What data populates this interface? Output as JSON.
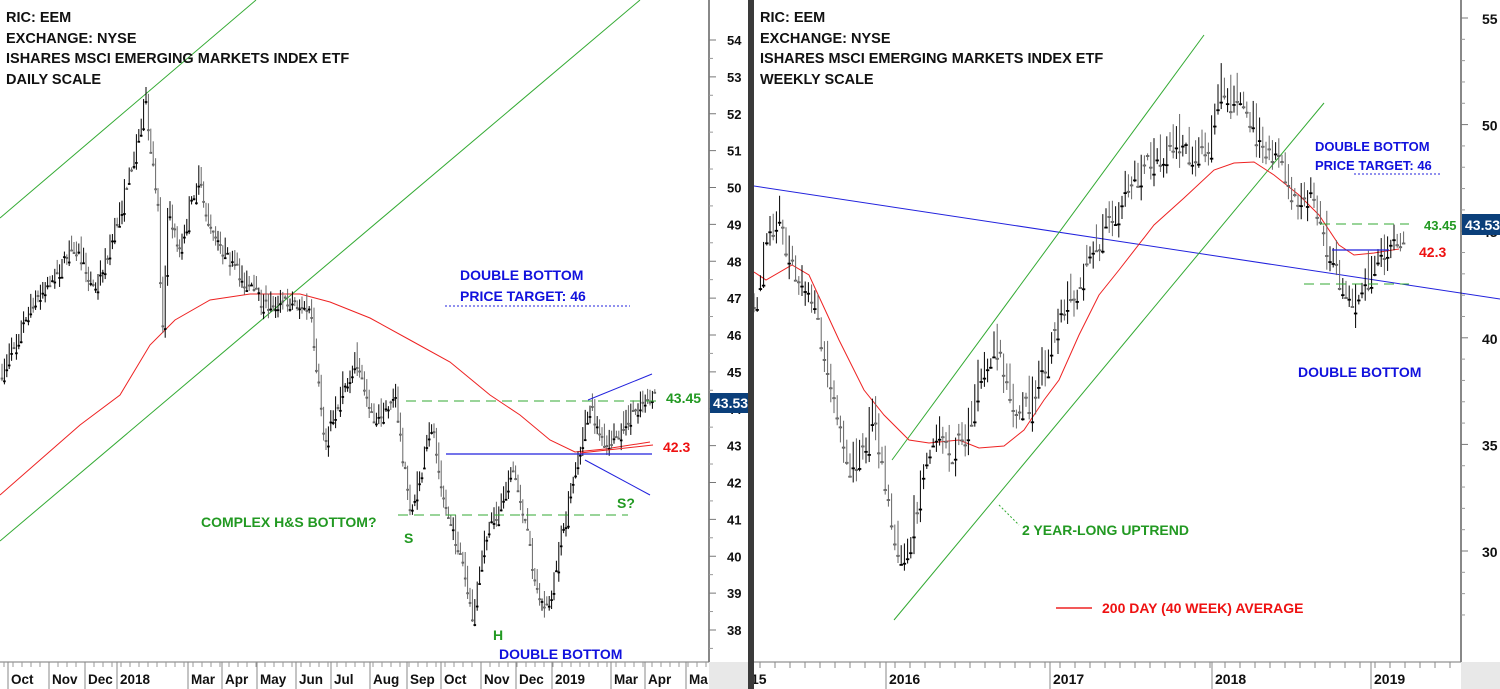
{
  "colors": {
    "price": "#000000",
    "hollow_body": "#ffffff",
    "ma": "#ee2222",
    "trendline_green": "#33aa33",
    "trendline_blue": "#2222dd",
    "label_green": "#229922",
    "label_blue": "#1111dd",
    "label_red": "#ee1111",
    "last_price_bg": "#0b3f7a",
    "last_price_fg": "#ffffff",
    "axis_corner": "#e8e8e8",
    "divider": "#3a3a3a"
  },
  "daily": {
    "header": [
      "RIC: EEM",
      "EXCHANGE: NYSE",
      "ISHARES MSCI EMERGING MARKETS INDEX ETF",
      "DAILY SCALE"
    ],
    "last_price": "43.53",
    "annotations": {
      "target_title": "DOUBLE BOTTOM",
      "target_value": "PRICE TARGET: 46",
      "level_upper": "43.45",
      "level_ma": "42.3",
      "pattern": "COMPLEX H&S BOTTOM?",
      "left_shoulder": "S",
      "head": "H",
      "right_shoulder": "S?",
      "double_bottom": "DOUBLE BOTTOM"
    }
  },
  "weekly": {
    "header": [
      "RIC: EEM",
      "EXCHANGE: NYSE",
      "ISHARES MSCI EMERGING MARKETS INDEX ETF",
      "WEEKLY SCALE"
    ],
    "last_price": "43.53",
    "annotations": {
      "target_title": "DOUBLE BOTTOM",
      "target_value": "PRICE TARGET: 46",
      "level_upper": "43.45",
      "level_ma": "42.3",
      "uptrend": "2 YEAR-LONG UPTREND",
      "double_bottom": "DOUBLE BOTTOM",
      "legend": "200 DAY (40 WEEK) AVERAGE"
    }
  },
  "chart_data": [
    {
      "type": "candlestick",
      "title": "RIC: EEM | EXCHANGE: NYSE | ISHARES MSCI EMERGING MARKETS INDEX ETF | DAILY SCALE",
      "xlabel": "",
      "ylabel": "",
      "x_ticks": [
        "Oct",
        "Nov",
        "Dec",
        "2018",
        "Mar",
        "Apr",
        "May",
        "Jun",
        "Jul",
        "Aug",
        "Sep",
        "Oct",
        "Nov",
        "Dec",
        "2019",
        "Mar",
        "Apr",
        "Ma"
      ],
      "y_ticks": [
        38,
        39,
        40,
        41,
        42,
        43,
        44,
        45,
        46,
        47,
        48,
        49,
        50,
        51,
        52,
        53,
        54
      ],
      "ylim": [
        37.5,
        55.2
      ],
      "last_price": 43.53,
      "series": [
        {
          "name": "EEM close (approx.)",
          "x": [
            "2017-10",
            "2017-11",
            "2017-12",
            "2018-01",
            "2018-01-26",
            "2018-02",
            "2018-03",
            "2018-04",
            "2018-05",
            "2018-06",
            "2018-07",
            "2018-08",
            "2018-09",
            "2018-10",
            "2018-10-29",
            "2018-11",
            "2018-12",
            "2018-12-24",
            "2019-01",
            "2019-02",
            "2019-03",
            "2019-03-29"
          ],
          "values": [
            44.8,
            46.8,
            47.5,
            49.5,
            52.0,
            47.0,
            49.8,
            48.3,
            46.5,
            44.5,
            43.0,
            42.2,
            42.5,
            40.0,
            37.8,
            41.5,
            39.5,
            38.3,
            41.5,
            43.0,
            42.5,
            43.53
          ]
        },
        {
          "name": "200 day average",
          "x": [
            "2017-10",
            "2018-01",
            "2018-02",
            "2018-05",
            "2018-07",
            "2018-09",
            "2018-12",
            "2019-01",
            "2019-03"
          ],
          "values": [
            41.2,
            44.3,
            45.0,
            46.4,
            45.8,
            44.8,
            42.4,
            42.2,
            42.3
          ]
        }
      ],
      "levels": [
        {
          "label": "43.45",
          "value": 43.45,
          "style": "dashed",
          "color": "green"
        },
        {
          "label": "42.3",
          "value": 42.3,
          "style": "ma",
          "color": "red"
        },
        {
          "label": "neckline",
          "value": 42.1,
          "style": "solid",
          "color": "blue"
        },
        {
          "label": "shoulder base",
          "value": 40.65,
          "style": "dashed",
          "color": "green"
        },
        {
          "label": "PRICE TARGET: 46",
          "value": 46.0,
          "style": "dotted",
          "color": "blue"
        }
      ],
      "annotations": [
        "DOUBLE BOTTOM PRICE TARGET: 46",
        "COMPLEX H&S BOTTOM?",
        "S",
        "H",
        "S?",
        "DOUBLE BOTTOM",
        "43.45",
        "42.3"
      ]
    },
    {
      "type": "candlestick",
      "title": "RIC: EEM | EXCHANGE: NYSE | ISHARES MSCI EMERGING MARKETS INDEX ETF | WEEKLY SCALE",
      "xlabel": "",
      "ylabel": "",
      "x_ticks": [
        "15",
        "2016",
        "2017",
        "2018",
        "2019"
      ],
      "y_ticks": [
        30,
        35,
        40,
        45,
        50,
        55
      ],
      "ylim": [
        26.5,
        56.0
      ],
      "last_price": 43.53,
      "series": [
        {
          "name": "EEM weekly close (approx.)",
          "x": [
            "2015-05",
            "2015-07",
            "2015-09",
            "2015-12",
            "2016-01-22",
            "2016-04",
            "2016-07",
            "2016-09",
            "2016-11",
            "2017-01",
            "2017-04",
            "2017-07",
            "2017-10",
            "2018-01-26",
            "2018-03",
            "2018-05",
            "2018-07",
            "2018-10",
            "2018-12",
            "2019-01",
            "2019-03-29"
          ],
          "values": [
            48.0,
            44.0,
            35.5,
            35.0,
            28.3,
            34.5,
            37.0,
            38.3,
            35.0,
            36.0,
            39.5,
            42.0,
            47.0,
            52.0,
            49.0,
            45.0,
            43.0,
            39.0,
            38.3,
            41.5,
            43.53
          ]
        },
        {
          "name": "200 day (40 week) average",
          "x": [
            "2015-05",
            "2015-08",
            "2016-01",
            "2016-04",
            "2016-10",
            "2017-04",
            "2017-10",
            "2018-03",
            "2018-06",
            "2018-11",
            "2019-03"
          ],
          "values": [
            46.8,
            45.5,
            39.0,
            35.0,
            35.0,
            38.0,
            43.0,
            46.5,
            47.0,
            42.3,
            42.3
          ]
        }
      ],
      "levels": [
        {
          "label": "43.45",
          "value": 43.45,
          "style": "dashed",
          "color": "green"
        },
        {
          "label": "42.3",
          "value": 42.3,
          "style": "ma",
          "color": "red"
        },
        {
          "label": "PRICE TARGET: 46",
          "value": 46.0,
          "style": "dotted",
          "color": "blue"
        }
      ],
      "legend": [
        {
          "label": "200 DAY (40 WEEK) AVERAGE",
          "color": "red"
        }
      ],
      "annotations": [
        "DOUBLE BOTTOM PRICE TARGET: 46",
        "2 YEAR-LONG UPTREND",
        "DOUBLE BOTTOM",
        "43.45",
        "42.3"
      ]
    }
  ]
}
